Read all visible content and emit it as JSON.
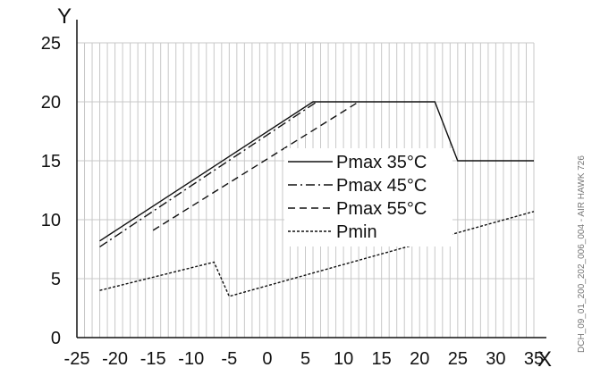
{
  "chart_data": {
    "type": "line",
    "xlabel": "X",
    "ylabel": "Y",
    "xlim": [
      -25,
      35
    ],
    "ylim": [
      0,
      25
    ],
    "x_ticks": [
      -25,
      -20,
      -15,
      -10,
      -5,
      0,
      5,
      10,
      15,
      20,
      25,
      30,
      35
    ],
    "y_ticks": [
      0,
      5,
      10,
      15,
      20,
      25
    ],
    "grid": "vertical lines every 1 unit, horizontal lines every 5 units",
    "legend_position": "center-right",
    "side_note": "DCH_09_01_200_202_006_004 - AIR HAWK 726",
    "series": [
      {
        "name": "Pmax 35°C",
        "style": "solid",
        "points": [
          [
            -22,
            8.2
          ],
          [
            6,
            20
          ],
          [
            22,
            20
          ],
          [
            25,
            15
          ],
          [
            35,
            15
          ]
        ]
      },
      {
        "name": "Pmax 45°C",
        "style": "dashdot",
        "points": [
          [
            -22,
            7.7
          ],
          [
            6.5,
            20
          ]
        ]
      },
      {
        "name": "Pmax 55°C",
        "style": "dashed",
        "points": [
          [
            -15,
            9.1
          ],
          [
            12,
            20
          ]
        ]
      },
      {
        "name": "Pmin",
        "style": "dotted",
        "points": [
          [
            -22,
            4
          ],
          [
            -7,
            6.4
          ],
          [
            -5,
            3.5
          ],
          [
            35,
            10.7
          ]
        ]
      }
    ]
  },
  "colors": {
    "grid": "#c8c8c8",
    "axis": "#111111",
    "series": "#111111"
  }
}
